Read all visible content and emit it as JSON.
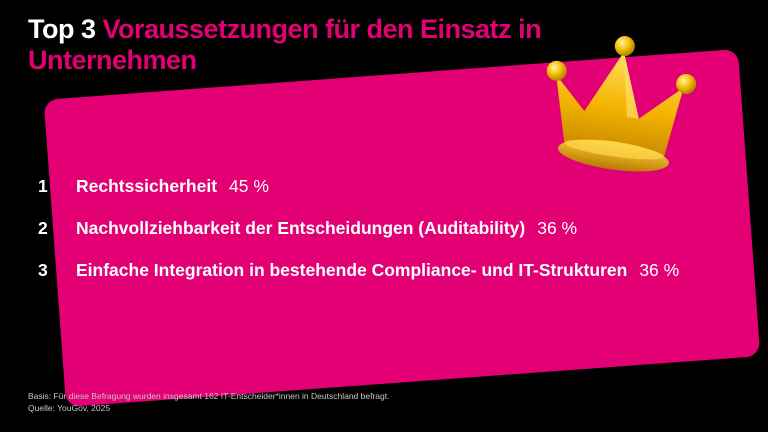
{
  "title": {
    "part1": "Top 3",
    "part2": "Voraussetzungen für den Einsatz in Unternehmen"
  },
  "items": [
    {
      "rank": "1",
      "label": "Rechtssicherheit",
      "value": "45 %"
    },
    {
      "rank": "2",
      "label": "Nachvollziehbarkeit der Entscheidungen (Auditability)",
      "value": "36 %"
    },
    {
      "rank": "3",
      "label": "Einfache Integration in bestehende Compliance- und IT-Strukturen",
      "value": "36 %"
    }
  ],
  "footer": {
    "basis": "Basis: Für diese Befragung wurden insgesamt 162 IT-Entscheider*innen in Deutschland befragt.",
    "source": "Quelle: YouGov, 2025"
  },
  "colors": {
    "accent": "#e20074",
    "background": "#000000",
    "crown": "#f2b705"
  },
  "icons": {
    "decoration": "crown-icon"
  }
}
